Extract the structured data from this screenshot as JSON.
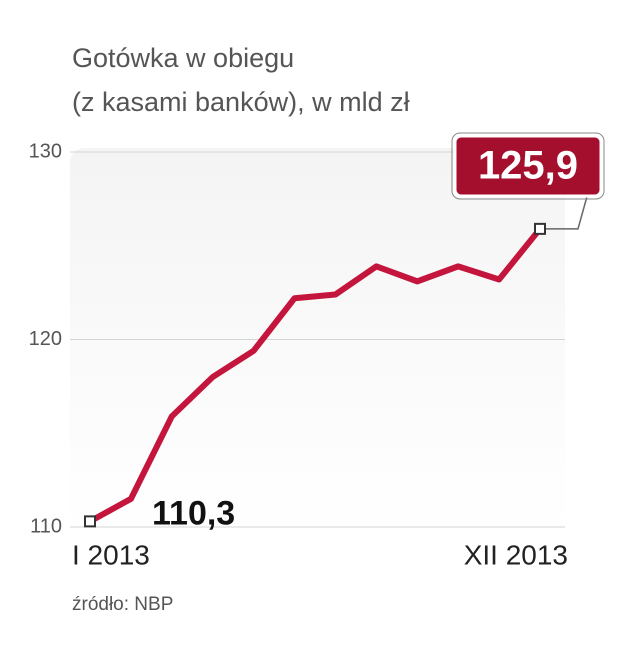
{
  "chart_data": {
    "type": "line",
    "title": "Gotówka w obiegu",
    "subtitle": "(z kasami banków), w mld zł",
    "source": "źródło: NBP",
    "categories": [
      "I 2013",
      null,
      null,
      null,
      null,
      null,
      null,
      null,
      null,
      null,
      null,
      "XII 2013"
    ],
    "series": [
      {
        "name": "Gotówka w obiegu",
        "color": "#c4163c",
        "values": [
          110.3,
          111.5,
          115.9,
          118.0,
          119.4,
          122.2,
          122.4,
          123.9,
          123.1,
          123.9,
          123.2,
          125.9
        ],
        "value_labels": [
          "110,3",
          null,
          null,
          null,
          null,
          null,
          null,
          null,
          null,
          null,
          null,
          "125,9"
        ]
      }
    ],
    "ylim": [
      110,
      130
    ],
    "yticks": [
      110,
      120,
      130
    ],
    "grid": true
  }
}
